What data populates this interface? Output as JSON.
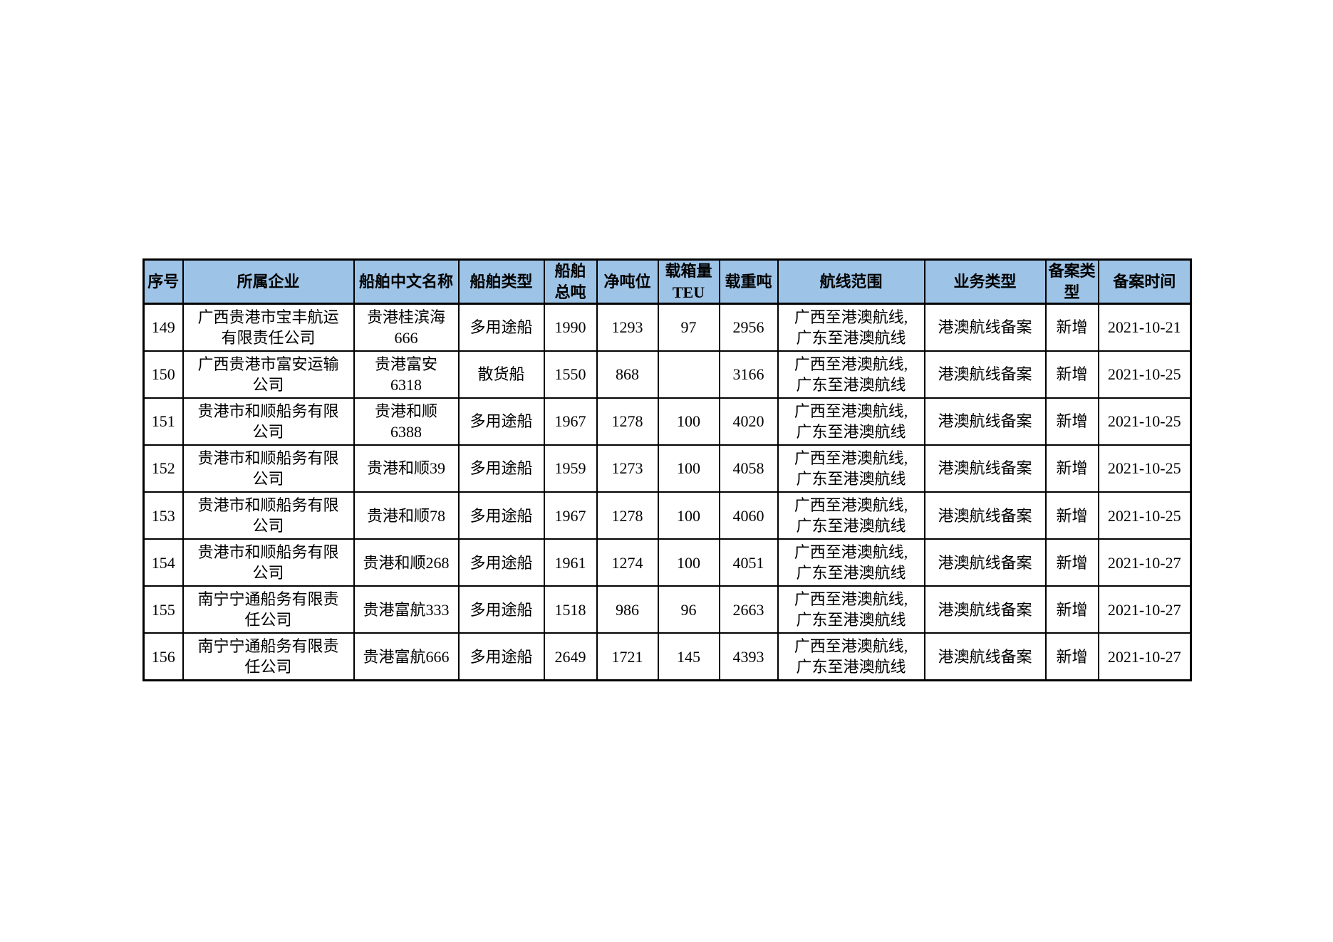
{
  "page": {
    "background_color": "#ffffff"
  },
  "table": {
    "header_bg_color": "#9DC3E6",
    "border_color": "#000000",
    "headers": [
      "序号",
      "所属企业",
      "船舶中文名称",
      "船舶类型",
      "船舶\n总吨",
      "净吨位",
      "载箱量\nTEU",
      "载重吨",
      "航线范围",
      "业务类型",
      "备案类\n型",
      "备案时间"
    ],
    "rows": [
      [
        "149",
        "广西贵港市宝丰航运\n有限责任公司",
        "贵港桂滨海\n666",
        "多用途船",
        "1990",
        "1293",
        "97",
        "2956",
        "广西至港澳航线,\n广东至港澳航线",
        "港澳航线备案",
        "新增",
        "2021-10-21"
      ],
      [
        "150",
        "广西贵港市富安运输\n公司",
        "贵港富安\n6318",
        "散货船",
        "1550",
        "868",
        "",
        "3166",
        "广西至港澳航线,\n广东至港澳航线",
        "港澳航线备案",
        "新增",
        "2021-10-25"
      ],
      [
        "151",
        "贵港市和顺船务有限\n公司",
        "贵港和顺\n6388",
        "多用途船",
        "1967",
        "1278",
        "100",
        "4020",
        "广西至港澳航线,\n广东至港澳航线",
        "港澳航线备案",
        "新增",
        "2021-10-25"
      ],
      [
        "152",
        "贵港市和顺船务有限\n公司",
        "贵港和顺39",
        "多用途船",
        "1959",
        "1273",
        "100",
        "4058",
        "广西至港澳航线,\n广东至港澳航线",
        "港澳航线备案",
        "新增",
        "2021-10-25"
      ],
      [
        "153",
        "贵港市和顺船务有限\n公司",
        "贵港和顺78",
        "多用途船",
        "1967",
        "1278",
        "100",
        "4060",
        "广西至港澳航线,\n广东至港澳航线",
        "港澳航线备案",
        "新增",
        "2021-10-25"
      ],
      [
        "154",
        "贵港市和顺船务有限\n公司",
        "贵港和顺268",
        "多用途船",
        "1961",
        "1274",
        "100",
        "4051",
        "广西至港澳航线,\n广东至港澳航线",
        "港澳航线备案",
        "新增",
        "2021-10-27"
      ],
      [
        "155",
        "南宁宁通船务有限责\n任公司",
        "贵港富航333",
        "多用途船",
        "1518",
        "986",
        "96",
        "2663",
        "广西至港澳航线,\n广东至港澳航线",
        "港澳航线备案",
        "新增",
        "2021-10-27"
      ],
      [
        "156",
        "南宁宁通船务有限责\n任公司",
        "贵港富航666",
        "多用途船",
        "2649",
        "1721",
        "145",
        "4393",
        "广西至港澳航线,\n广东至港澳航线",
        "港澳航线备案",
        "新增",
        "2021-10-27"
      ]
    ]
  }
}
